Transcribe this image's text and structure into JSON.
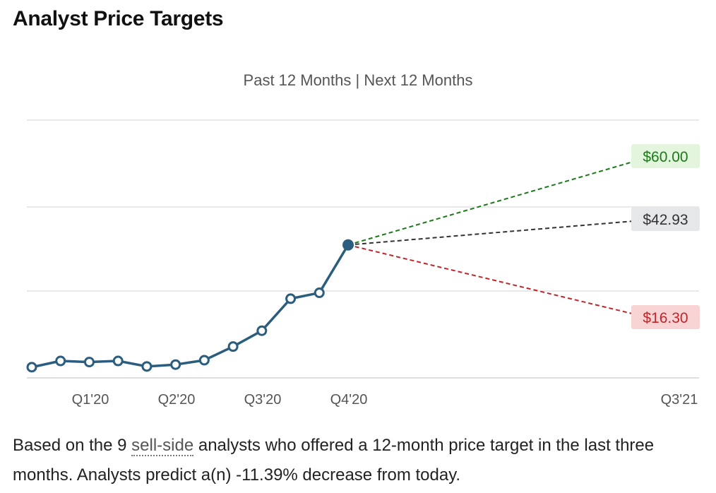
{
  "header": {
    "title": "Analyst Price Targets"
  },
  "range_toggle": {
    "past": "Past 12 Months",
    "separator": "|",
    "next": "Next 12 Months"
  },
  "chart_data": {
    "type": "line",
    "title": "Analyst Price Targets",
    "xlabel": "",
    "ylabel": "",
    "x_tick_labels": [
      "Q1'20",
      "Q2'20",
      "Q3'20",
      "Q4'20",
      "Q3'21"
    ],
    "ylim": [
      0,
      70
    ],
    "grid": true,
    "series": [
      {
        "name": "Price history",
        "values": [
          2.9,
          4.6,
          4.3,
          4.6,
          3.1,
          3.6,
          4.8,
          8.5,
          12.8,
          21.5,
          23.1,
          36.1
        ],
        "color": "#2b5d7e"
      }
    ],
    "targets": [
      {
        "name": "High",
        "value": 60.0,
        "label": "$60.00",
        "color": "#1a7a17",
        "bg": "#e3f5dd"
      },
      {
        "name": "Average",
        "value": 42.93,
        "label": "$42.93",
        "color": "#333333",
        "bg": "#e6e7e9"
      },
      {
        "name": "Low",
        "value": 16.3,
        "label": "$16.30",
        "color": "#c0252c",
        "bg": "#f8d3d3"
      }
    ]
  },
  "caption": {
    "before_count": "Based on the ",
    "analyst_count": "9",
    "link_text": "sell-side",
    "after_link": " analysts who offered a 12-month price target in the last three months. Analysts predict a(n) ",
    "change_pct": "-11.39%",
    "direction": " decrease from today."
  }
}
